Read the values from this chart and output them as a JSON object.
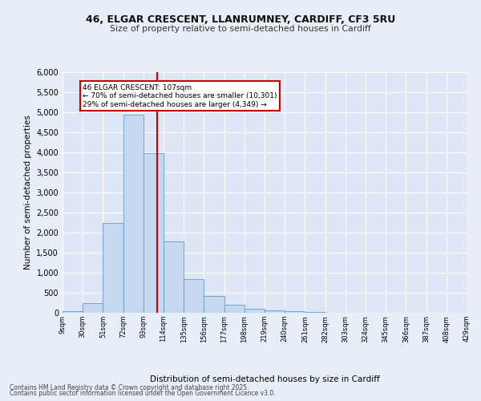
{
  "title1": "46, ELGAR CRESCENT, LLANRUMNEY, CARDIFF, CF3 5RU",
  "title2": "Size of property relative to semi-detached houses in Cardiff",
  "xlabel": "Distribution of semi-detached houses by size in Cardiff",
  "ylabel": "Number of semi-detached properties",
  "bin_labels": [
    "9sqm",
    "30sqm",
    "51sqm",
    "72sqm",
    "93sqm",
    "114sqm",
    "135sqm",
    "156sqm",
    "177sqm",
    "198sqm",
    "219sqm",
    "240sqm",
    "261sqm",
    "282sqm",
    "303sqm",
    "324sqm",
    "345sqm",
    "366sqm",
    "387sqm",
    "408sqm",
    "429sqm"
  ],
  "bin_edges": [
    9,
    30,
    51,
    72,
    93,
    114,
    135,
    156,
    177,
    198,
    219,
    240,
    261,
    282,
    303,
    324,
    345,
    366,
    387,
    408,
    429
  ],
  "bar_heights": [
    50,
    250,
    2250,
    4950,
    3980,
    1780,
    850,
    415,
    195,
    100,
    65,
    50,
    15,
    5,
    2,
    0,
    0,
    0,
    0,
    0
  ],
  "bar_color": "#c5d8f0",
  "bar_edge_color": "#6699cc",
  "vline_x": 107,
  "vline_color": "#cc0000",
  "annotation_title": "46 ELGAR CRESCENT: 107sqm",
  "annotation_line1": "← 70% of semi-detached houses are smaller (10,301)",
  "annotation_line2": "29% of semi-detached houses are larger (4,349) →",
  "annotation_box_color": "#cc0000",
  "ylim": [
    0,
    6000
  ],
  "yticks": [
    0,
    500,
    1000,
    1500,
    2000,
    2500,
    3000,
    3500,
    4000,
    4500,
    5000,
    5500,
    6000
  ],
  "bg_color": "#dce6f5",
  "fig_bg_color": "#e8eef8",
  "grid_color": "#ffffff",
  "footer1": "Contains HM Land Registry data © Crown copyright and database right 2025.",
  "footer2": "Contains public sector information licensed under the Open Government Licence v3.0."
}
